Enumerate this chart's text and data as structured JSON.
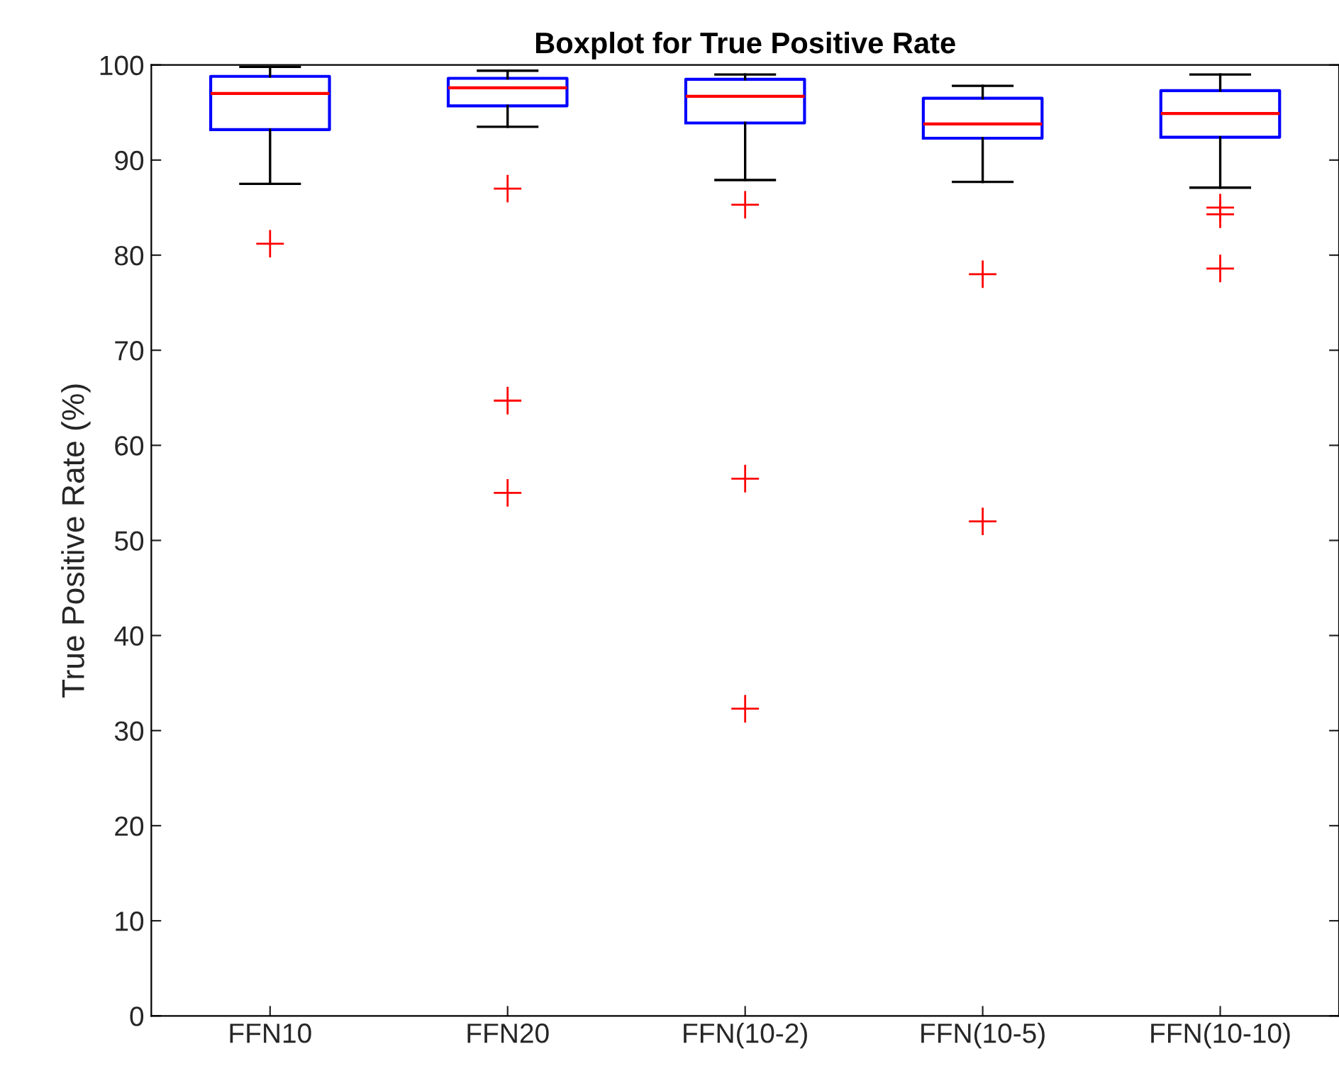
{
  "chart_data": {
    "type": "box",
    "title": "Boxplot for True Positive Rate",
    "ylabel": "True Positive Rate (%)",
    "categories": [
      "FFN10",
      "FFN20",
      "FFN(10-2)",
      "FFN(10-5)",
      "FFN(10-10)"
    ],
    "boxes": [
      {
        "low": 87.5,
        "q1": 93.2,
        "median": 97.0,
        "q3": 98.8,
        "high": 99.8,
        "outliers": [
          81.2
        ]
      },
      {
        "low": 93.5,
        "q1": 95.7,
        "median": 97.6,
        "q3": 98.6,
        "high": 99.4,
        "outliers": [
          87.0,
          64.7,
          55.0
        ]
      },
      {
        "low": 87.9,
        "q1": 93.9,
        "median": 96.7,
        "q3": 98.5,
        "high": 99.0,
        "outliers": [
          85.3,
          56.5,
          32.3
        ]
      },
      {
        "low": 87.7,
        "q1": 92.3,
        "median": 93.8,
        "q3": 96.5,
        "high": 97.8,
        "outliers": [
          78.0,
          52.0
        ]
      },
      {
        "low": 87.1,
        "q1": 92.4,
        "median": 94.9,
        "q3": 97.3,
        "high": 99.0,
        "outliers": [
          85.0,
          84.3,
          78.6
        ]
      }
    ],
    "color": "#0000ff",
    "ylim": [
      0,
      100
    ],
    "yticks": [
      0,
      10,
      20,
      30,
      40,
      50,
      60,
      70,
      80,
      90,
      100
    ],
    "grid": false,
    "legend": false
  }
}
